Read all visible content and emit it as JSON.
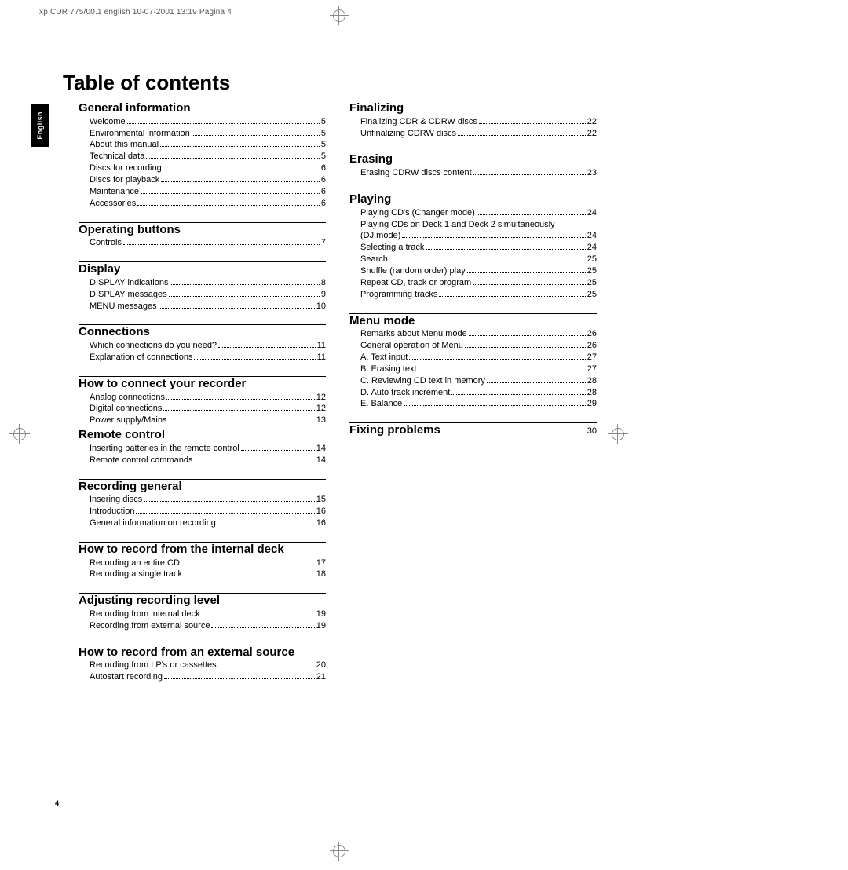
{
  "header_crop_text": "xp CDR 775/00.1 english   10-07-2001 13:19   Pagina 4",
  "side_tab": "English",
  "page_title": "Table of contents",
  "page_number": "4",
  "left_column": [
    {
      "heading": "General information",
      "entries": [
        {
          "label": "Welcome",
          "page": "5"
        },
        {
          "label": "Environmental information",
          "page": "5"
        },
        {
          "label": "About this manual",
          "page": "5"
        },
        {
          "label": "Technical data",
          "page": "5"
        },
        {
          "label": "Discs for recording",
          "page": "6"
        },
        {
          "label": "Discs for playback",
          "page": "6"
        },
        {
          "label": "Maintenance",
          "page": "6"
        },
        {
          "label": "Accessories",
          "page": "6"
        }
      ]
    },
    {
      "heading": "Operating buttons",
      "entries": [
        {
          "label": "Controls",
          "page": "7"
        }
      ]
    },
    {
      "heading": "Display",
      "entries": [
        {
          "label": "DISPLAY indications",
          "page": "8"
        },
        {
          "label": "DISPLAY messages",
          "page": "9"
        },
        {
          "label": "MENU messages",
          "page": "10"
        }
      ]
    },
    {
      "heading": "Connections",
      "entries": [
        {
          "label": "Which connections do you need?",
          "page": "11"
        },
        {
          "label": "Explanation of connections",
          "page": "11"
        }
      ]
    },
    {
      "heading": "How to connect your recorder",
      "entries": [
        {
          "label": "Analog connections",
          "page": "12"
        },
        {
          "label": "Digital connections",
          "page": "12"
        },
        {
          "label": "Power supply/Mains",
          "page": "13"
        }
      ]
    },
    {
      "heading": "Remote control",
      "no_top_gap": true,
      "entries": [
        {
          "label": "Inserting batteries in the remote control",
          "page": "14"
        },
        {
          "label": "Remote control commands",
          "page": "14"
        }
      ]
    },
    {
      "heading": "Recording general",
      "entries": [
        {
          "label": "Insering discs",
          "page": "15"
        },
        {
          "label": "Introduction",
          "page": "16"
        },
        {
          "label": "General information on recording",
          "page": "16"
        }
      ]
    },
    {
      "heading": "How to record from the internal deck",
      "entries": [
        {
          "label": "Recording an entire CD",
          "page": "17"
        },
        {
          "label": "Recording a single track",
          "page": "18"
        }
      ]
    },
    {
      "heading": "Adjusting recording level",
      "entries": [
        {
          "label": "Recording from internal deck",
          "page": "19"
        },
        {
          "label": "Recording from external source",
          "page": "19"
        }
      ]
    },
    {
      "heading": "How to record from an external source",
      "entries": [
        {
          "label": "Recording from LP's or cassettes",
          "page": "20"
        },
        {
          "label": "Autostart recording",
          "page": "21"
        }
      ]
    }
  ],
  "right_column": [
    {
      "heading": "Finalizing",
      "entries": [
        {
          "label": "Finalizing CDR & CDRW discs",
          "page": "22"
        },
        {
          "label": "Unfinalizing CDRW discs",
          "page": "22"
        }
      ]
    },
    {
      "heading": "Erasing",
      "entries": [
        {
          "label": "Erasing CDRW discs content",
          "page": "23"
        }
      ]
    },
    {
      "heading": "Playing",
      "entries": [
        {
          "label": "Playing CD's (Changer mode)",
          "page": "24"
        },
        {
          "label_multiline": "Playing CDs on Deck 1 and Deck 2 simultaneously",
          "label2": "(DJ mode)",
          "page": "24"
        },
        {
          "label": "Selecting a track",
          "page": "24"
        },
        {
          "label": "Search",
          "page": "25"
        },
        {
          "label": "Shuffle (random order) play",
          "page": "25"
        },
        {
          "label": "Repeat CD, track or program",
          "page": "25"
        },
        {
          "label": "Programming tracks",
          "page": "25"
        }
      ]
    },
    {
      "heading": "Menu mode",
      "entries": [
        {
          "label": "Remarks about Menu mode",
          "page": "26"
        },
        {
          "label": "General operation of Menu",
          "page": "26"
        },
        {
          "label": "A. Text input",
          "page": "27"
        },
        {
          "label": "B. Erasing text",
          "page": "27"
        },
        {
          "label": "C. Reviewing CD text in memory",
          "page": "28"
        },
        {
          "label": "D. Auto track increment",
          "page": "28"
        },
        {
          "label": "E. Balance",
          "page": "29"
        }
      ]
    },
    {
      "heading": "Fixing problems",
      "heading_page": "30",
      "entries": []
    }
  ]
}
